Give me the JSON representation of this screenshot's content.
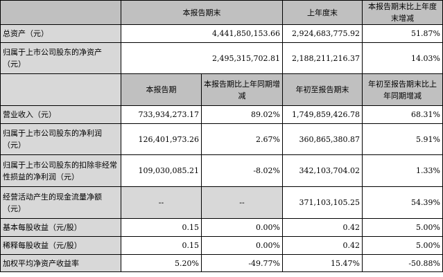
{
  "top_section": {
    "headers": [
      "",
      "本报告期末",
      "上年度末",
      "本报告期末比上年度末增减"
    ],
    "rows": [
      {
        "label": "总资产（元）",
        "current": "4,441,850,153.66",
        "prior": "2,924,683,775.92",
        "change": "51.87%"
      },
      {
        "label": "归属于上市公司股东的净资产（元）",
        "current": "2,495,315,702.81",
        "prior": "2,188,211,216.37",
        "change": "14.03%"
      }
    ]
  },
  "bottom_section": {
    "headers": [
      "",
      "本报告期",
      "本报告期比上年同期增减",
      "年初至报告期末",
      "年初至报告期末比上年同期增减"
    ],
    "rows": [
      {
        "label": "营业收入（元）",
        "period": "733,934,273.17",
        "period_change": "89.02%",
        "ytd": "1,749,859,426.78",
        "ytd_change": "68.31%"
      },
      {
        "label": "归属于上市公司股东的净利润（元）",
        "period": "126,401,973.26",
        "period_change": "2.67%",
        "ytd": "360,865,380.87",
        "ytd_change": "5.91%"
      },
      {
        "label": "归属于上市公司股东的扣除非经常性损益的净利润（元）",
        "period": "109,030,085.21",
        "period_change": "-8.02%",
        "ytd": "342,103,704.02",
        "ytd_change": "1.33%"
      },
      {
        "label": "经营活动产生的现金流量净额（元）",
        "period": "--",
        "period_change": "--",
        "ytd": "371,103,105.25",
        "ytd_change": "54.39%"
      },
      {
        "label": "基本每股收益（元/股）",
        "period": "0.15",
        "period_change": "0.00%",
        "ytd": "0.42",
        "ytd_change": "5.00%"
      },
      {
        "label": "稀释每股收益（元/股）",
        "period": "0.15",
        "period_change": "0.00%",
        "ytd": "0.42",
        "ytd_change": "5.00%"
      },
      {
        "label": "加权平均净资产收益率",
        "period": "5.20%",
        "period_change": "-49.77%",
        "ytd": "15.47%",
        "ytd_change": "-50.88%"
      }
    ]
  }
}
